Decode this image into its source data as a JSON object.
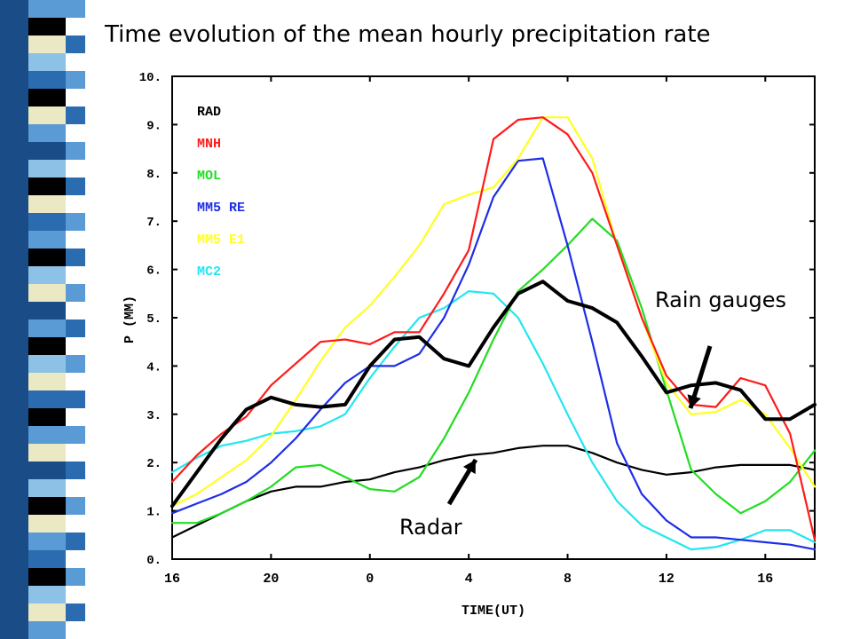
{
  "slide": {
    "title": "Time evolution of the mean hourly precipitation rate",
    "stripe_colors": [
      "#1a4c87",
      "#5b9bd5",
      "#000000",
      "#eae9c3",
      "#8ec1e6",
      "#2b6cb0",
      "#0a0a0a",
      "#ffffff"
    ]
  },
  "annotations": {
    "rain_gauges": "Rain gauges",
    "radar": "Radar"
  },
  "chart_data": {
    "type": "line",
    "xlabel": "TIME(UT)",
    "ylabel": "P (MM)",
    "x_tick_labels": [
      "16",
      "20",
      "0",
      "4",
      "8",
      "12",
      "16"
    ],
    "y_tick_labels": [
      "0.",
      "1.",
      "2.",
      "3.",
      "4.",
      "5.",
      "6.",
      "7.",
      "8.",
      "9.",
      "10."
    ],
    "xlim": [
      16,
      42
    ],
    "ylim": [
      0,
      10
    ],
    "legend_position": "top-left",
    "series": [
      {
        "name": "RAD",
        "color": "#000000",
        "width": 4,
        "x": [
          16,
          17,
          18,
          19,
          20,
          21,
          22,
          23,
          24,
          25,
          26,
          27,
          28,
          29,
          30,
          31,
          32,
          33,
          34,
          35,
          36,
          37,
          38,
          39,
          40,
          41,
          42
        ],
        "y": [
          1.1,
          1.8,
          2.5,
          3.1,
          3.35,
          3.2,
          3.15,
          3.2,
          4.0,
          4.55,
          4.6,
          4.15,
          4.0,
          4.8,
          5.5,
          5.75,
          5.35,
          5.2,
          4.9,
          4.2,
          3.45,
          3.6,
          3.65,
          3.5,
          2.9,
          2.9,
          3.2
        ]
      },
      {
        "name": "MNH",
        "color": "#ff1a1a",
        "width": 2.2,
        "x": [
          16,
          17,
          18,
          19,
          20,
          21,
          22,
          23,
          24,
          25,
          26,
          27,
          28,
          29,
          30,
          31,
          32,
          33,
          34,
          35,
          36,
          37,
          38,
          39,
          40,
          41,
          42
        ],
        "y": [
          1.6,
          2.15,
          2.6,
          2.95,
          3.6,
          4.05,
          4.5,
          4.55,
          4.45,
          4.7,
          4.7,
          5.5,
          6.4,
          8.7,
          9.1,
          9.15,
          8.8,
          8.0,
          6.5,
          5.0,
          3.8,
          3.2,
          3.15,
          3.75,
          3.6,
          2.6,
          0.4
        ]
      },
      {
        "name": "MOL",
        "color": "#22dd22",
        "width": 2.2,
        "x": [
          16,
          17,
          18,
          19,
          20,
          21,
          22,
          23,
          24,
          25,
          26,
          27,
          28,
          29,
          30,
          31,
          32,
          33,
          34,
          35,
          36,
          37,
          38,
          39,
          40,
          41,
          42
        ],
        "y": [
          0.75,
          0.75,
          0.95,
          1.2,
          1.5,
          1.9,
          1.95,
          1.7,
          1.45,
          1.4,
          1.7,
          2.5,
          3.45,
          4.55,
          5.55,
          6.0,
          6.5,
          7.05,
          6.6,
          5.2,
          3.5,
          1.85,
          1.35,
          0.95,
          1.2,
          1.6,
          2.25
        ]
      },
      {
        "name": "MM5 RE",
        "color": "#1e2ee6",
        "width": 2.2,
        "x": [
          16,
          17,
          18,
          19,
          20,
          21,
          22,
          23,
          24,
          25,
          26,
          27,
          28,
          29,
          30,
          31,
          32,
          33,
          34,
          35,
          36,
          37,
          38,
          39,
          40,
          41,
          42
        ],
        "y": [
          0.95,
          1.15,
          1.35,
          1.6,
          2.0,
          2.5,
          3.1,
          3.65,
          4.0,
          4.0,
          4.25,
          5.0,
          6.1,
          7.5,
          8.25,
          8.3,
          6.5,
          4.5,
          2.4,
          1.35,
          0.8,
          0.45,
          0.45,
          0.4,
          0.35,
          0.3,
          0.2
        ]
      },
      {
        "name": "MM5 E1",
        "color": "#ffff22",
        "width": 2.2,
        "x": [
          16,
          17,
          18,
          19,
          20,
          21,
          22,
          23,
          24,
          25,
          26,
          27,
          28,
          29,
          30,
          31,
          32,
          33,
          34,
          35,
          36,
          37,
          38,
          39,
          40,
          41,
          42
        ],
        "y": [
          1.1,
          1.35,
          1.7,
          2.05,
          2.55,
          3.3,
          4.1,
          4.8,
          5.25,
          5.85,
          6.5,
          7.35,
          7.55,
          7.7,
          8.3,
          9.15,
          9.15,
          8.3,
          6.5,
          5.0,
          3.65,
          3.0,
          3.05,
          3.3,
          3.0,
          2.3,
          1.5
        ]
      },
      {
        "name": "MC2",
        "color": "#22e6f0",
        "width": 2.2,
        "x": [
          16,
          17,
          18,
          19,
          20,
          21,
          22,
          23,
          24,
          25,
          26,
          27,
          28,
          29,
          30,
          31,
          32,
          33,
          34,
          35,
          36,
          37,
          38,
          39,
          40,
          41,
          42
        ],
        "y": [
          1.8,
          2.1,
          2.35,
          2.45,
          2.6,
          2.65,
          2.75,
          3.0,
          3.75,
          4.4,
          5.0,
          5.2,
          5.55,
          5.5,
          5.0,
          4.05,
          3.0,
          2.0,
          1.2,
          0.7,
          0.45,
          0.2,
          0.25,
          0.4,
          0.6,
          0.6,
          0.35
        ]
      },
      {
        "name": "Radar",
        "color": "#000000",
        "width": 2.2,
        "x": [
          16,
          17,
          18,
          19,
          20,
          21,
          22,
          23,
          24,
          25,
          26,
          27,
          28,
          29,
          30,
          31,
          32,
          33,
          34,
          35,
          36,
          37,
          38,
          39,
          40,
          41,
          42
        ],
        "y": [
          0.45,
          0.7,
          0.95,
          1.2,
          1.4,
          1.5,
          1.5,
          1.6,
          1.65,
          1.8,
          1.9,
          2.05,
          2.15,
          2.2,
          2.3,
          2.35,
          2.35,
          2.2,
          2.0,
          1.85,
          1.75,
          1.8,
          1.9,
          1.95,
          1.95,
          1.95,
          1.85
        ]
      }
    ]
  }
}
